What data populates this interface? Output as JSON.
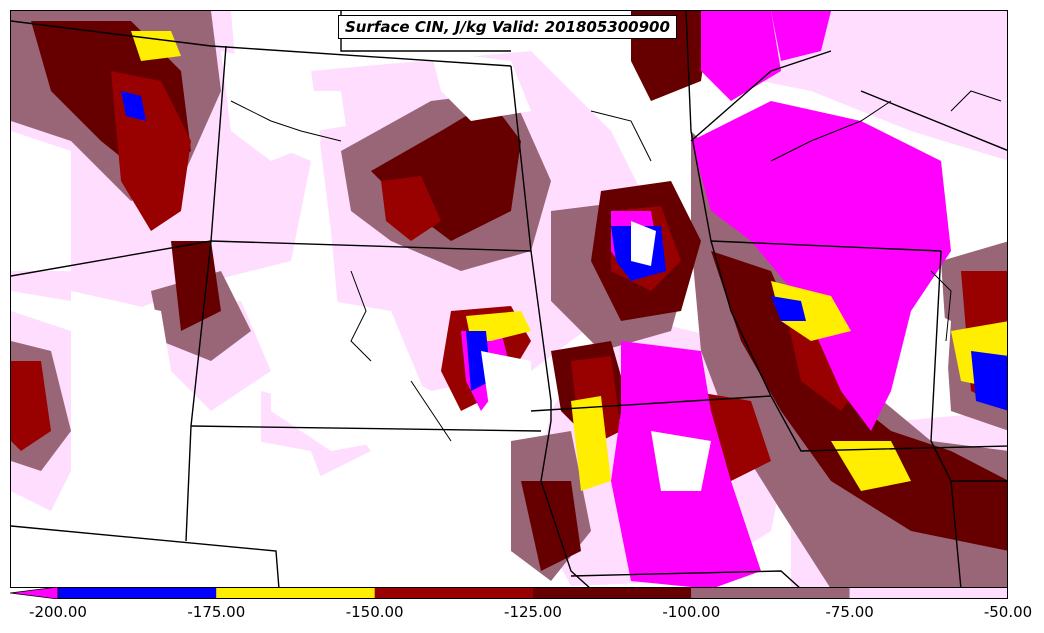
{
  "map": {
    "title": "Surface CIN, J/kg Valid: 201805300900"
  },
  "colors": {
    "lt_200": "#ff00ff",
    "c_200_175": "#0000ff",
    "c_175_150": "#ffee00",
    "c_150_125": "#990000",
    "c_125_100": "#660000",
    "c_100_75": "#996677",
    "c_75_50": "#ffddff",
    "background": "#ffffff",
    "borders": "#000000"
  },
  "colorbar": {
    "ticks": [
      "-200.00",
      "-175.00",
      "-150.00",
      "-125.00",
      "-100.00",
      "-75.00",
      "-50.00"
    ],
    "bins": [
      {
        "from": -200,
        "to": -175,
        "color": "#0000ff"
      },
      {
        "from": -175,
        "to": -150,
        "color": "#ffee00"
      },
      {
        "from": -150,
        "to": -125,
        "color": "#990000"
      },
      {
        "from": -125,
        "to": -100,
        "color": "#660000"
      },
      {
        "from": -100,
        "to": -75,
        "color": "#996677"
      },
      {
        "from": -75,
        "to": -50,
        "color": "#ffddff"
      }
    ],
    "under_color": "#ff00ff",
    "range": [
      -200,
      -50
    ]
  }
}
